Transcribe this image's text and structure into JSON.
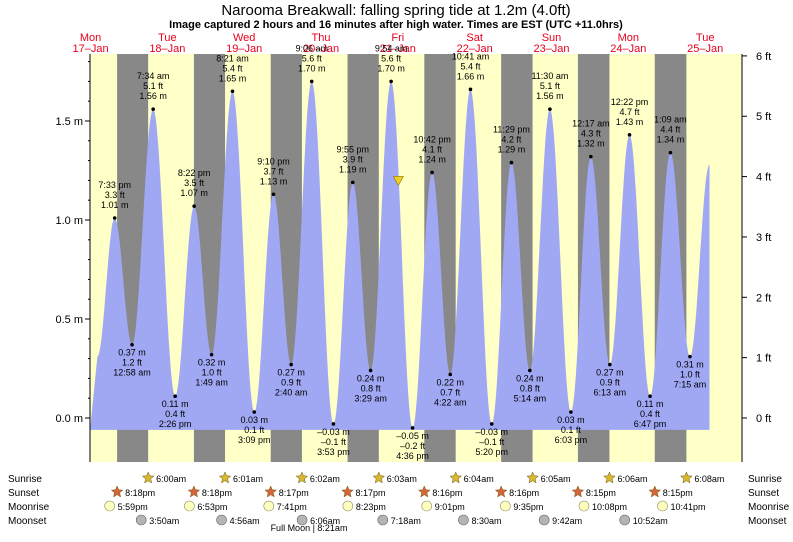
{
  "title": "Narooma Breakwall: falling  spring tide at 1.2m (4.0ft)",
  "subtitle": "Image captured 2 hours and 16 minutes after high water. Times are EST (UTC +11.0hrs)",
  "days": [
    {
      "dow": "Mon",
      "date": "17–Jan"
    },
    {
      "dow": "Tue",
      "date": "18–Jan"
    },
    {
      "dow": "Wed",
      "date": "19–Jan"
    },
    {
      "dow": "Thu",
      "date": "20–Jan"
    },
    {
      "dow": "Fri",
      "date": "21–Jan"
    },
    {
      "dow": "Sat",
      "date": "22–Jan"
    },
    {
      "dow": "Sun",
      "date": "23–Jan"
    },
    {
      "dow": "Mon",
      "date": "24–Jan"
    },
    {
      "dow": "Tue",
      "date": "25–Jan"
    }
  ],
  "colors": {
    "day": "#ffffc8",
    "night": "#888888",
    "water": "#a0a8f4",
    "day_label": "#e8001c",
    "sunrise_star": "#d8b830",
    "sunset_star": "#d8643a",
    "moonrise": "#ffffc0",
    "moonset": "#b4b4b4",
    "marker": "#f0d020"
  },
  "rows": {
    "sunrise": "Sunrise",
    "sunset": "Sunset",
    "moonrise": "Moonrise",
    "moonset": "Moonset"
  },
  "full_moon_note": "Full Moon | 8:21am",
  "chart_data": {
    "type": "area",
    "title": "Narooma Breakwall: falling  spring tide at 1.2m (4.0ft)",
    "ylabel_left": "m",
    "ylabel_right": "ft",
    "ylim_m": [
      -0.08,
      1.93
    ],
    "left_ticks": [
      "0.0 m",
      "0.5 m",
      "1.0 m",
      "1.5 m"
    ],
    "left_tick_values": [
      0,
      0.5,
      1.0,
      1.5
    ],
    "right_ticks": [
      "0 ft",
      "1 ft",
      "2 ft",
      "3 ft",
      "4 ft",
      "5 ft",
      "6 ft"
    ],
    "right_tick_values": [
      0,
      1,
      2,
      3,
      4,
      5,
      6
    ],
    "current": {
      "day": 4,
      "time": "12:10pm",
      "height_m": 1.2,
      "height_ft": 4.0
    },
    "tides": [
      {
        "day": 0,
        "time": "7:33 pm",
        "ft": "3.3 ft",
        "m": "1.01 m",
        "v": 1.01,
        "high": true
      },
      {
        "day": 1,
        "time": "12:58 am",
        "ft": "1.2 ft",
        "m": "0.37 m",
        "v": 0.37,
        "high": false
      },
      {
        "day": 1,
        "time": "7:34 am",
        "ft": "5.1 ft",
        "m": "1.56 m",
        "v": 1.56,
        "high": true
      },
      {
        "day": 1,
        "time": "2:26 pm",
        "ft": "0.4 ft",
        "m": "0.11 m",
        "v": 0.11,
        "high": false
      },
      {
        "day": 1,
        "time": "8:22 pm",
        "ft": "3.5 ft",
        "m": "1.07 m",
        "v": 1.07,
        "high": true
      },
      {
        "day": 2,
        "time": "1:49 am",
        "ft": "1.0 ft",
        "m": "0.32 m",
        "v": 0.32,
        "high": false
      },
      {
        "day": 2,
        "time": "8:21 am",
        "ft": "5.4 ft",
        "m": "1.65 m",
        "v": 1.65,
        "high": true
      },
      {
        "day": 2,
        "time": "3:09 pm",
        "ft": "0.1 ft",
        "m": "0.03 m",
        "v": 0.03,
        "high": false
      },
      {
        "day": 2,
        "time": "9:10 pm",
        "ft": "3.7 ft",
        "m": "1.13 m",
        "v": 1.13,
        "high": true
      },
      {
        "day": 3,
        "time": "2:40 am",
        "ft": "0.9 ft",
        "m": "0.27 m",
        "v": 0.27,
        "high": false
      },
      {
        "day": 3,
        "time": "9:06 am",
        "ft": "5.6 ft",
        "m": "1.70 m",
        "v": 1.7,
        "high": true
      },
      {
        "day": 3,
        "time": "3:53 pm",
        "ft": "–0.1 ft",
        "m": "–0.03 m",
        "v": -0.03,
        "high": false
      },
      {
        "day": 3,
        "time": "9:55 pm",
        "ft": "3.9 ft",
        "m": "1.19 m",
        "v": 1.19,
        "high": true
      },
      {
        "day": 4,
        "time": "3:29 am",
        "ft": "0.8 ft",
        "m": "0.24 m",
        "v": 0.24,
        "high": false
      },
      {
        "day": 4,
        "time": "9:54 am",
        "ft": "5.6 ft",
        "m": "1.70 m",
        "v": 1.7,
        "high": true
      },
      {
        "day": 4,
        "time": "4:36 pm",
        "ft": "–0.2 ft",
        "m": "–0.05 m",
        "v": -0.05,
        "high": false
      },
      {
        "day": 4,
        "time": "10:42 pm",
        "ft": "4.1 ft",
        "m": "1.24 m",
        "v": 1.24,
        "high": true
      },
      {
        "day": 5,
        "time": "4:22 am",
        "ft": "0.7 ft",
        "m": "0.22 m",
        "v": 0.22,
        "high": false
      },
      {
        "day": 5,
        "time": "10:41 am",
        "ft": "5.4 ft",
        "m": "1.66 m",
        "v": 1.66,
        "high": true
      },
      {
        "day": 5,
        "time": "5:20 pm",
        "ft": "–0.1 ft",
        "m": "–0.03 m",
        "v": -0.03,
        "high": false
      },
      {
        "day": 5,
        "time": "11:29 pm",
        "ft": "4.2 ft",
        "m": "1.29 m",
        "v": 1.29,
        "high": true
      },
      {
        "day": 6,
        "time": "5:14 am",
        "ft": "0.8 ft",
        "m": "0.24 m",
        "v": 0.24,
        "high": false
      },
      {
        "day": 6,
        "time": "11:30 am",
        "ft": "5.1 ft",
        "m": "1.56 m",
        "v": 1.56,
        "high": true
      },
      {
        "day": 6,
        "time": "6:03 pm",
        "ft": "0.1 ft",
        "m": "0.03 m",
        "v": 0.03,
        "high": false
      },
      {
        "day": 7,
        "time": "12:17 am",
        "ft": "4.3 ft",
        "m": "1.32 m",
        "v": 1.32,
        "high": true
      },
      {
        "day": 7,
        "time": "6:13 am",
        "ft": "0.9 ft",
        "m": "0.27 m",
        "v": 0.27,
        "high": false
      },
      {
        "day": 7,
        "time": "12:22 pm",
        "ft": "4.7 ft",
        "m": "1.43 m",
        "v": 1.43,
        "high": true
      },
      {
        "day": 7,
        "time": "6:47 pm",
        "ft": "0.4 ft",
        "m": "0.11 m",
        "v": 0.11,
        "high": false
      },
      {
        "day": 8,
        "time": "1:09 am",
        "ft": "4.4 ft",
        "m": "1.34 m",
        "v": 1.34,
        "high": true
      },
      {
        "day": 8,
        "time": "7:15 am",
        "ft": "1.0 ft",
        "m": "0.31 m",
        "v": 0.31,
        "high": false
      }
    ],
    "sunrise": [
      {
        "day": 1,
        "time": "6:00am"
      },
      {
        "day": 2,
        "time": "6:01am"
      },
      {
        "day": 3,
        "time": "6:02am"
      },
      {
        "day": 4,
        "time": "6:03am"
      },
      {
        "day": 5,
        "time": "6:04am"
      },
      {
        "day": 6,
        "time": "6:05am"
      },
      {
        "day": 7,
        "time": "6:06am"
      },
      {
        "day": 8,
        "time": "6:08am"
      }
    ],
    "sunset": [
      {
        "day": 0,
        "time": "8:18pm"
      },
      {
        "day": 1,
        "time": "8:18pm"
      },
      {
        "day": 2,
        "time": "8:17pm"
      },
      {
        "day": 3,
        "time": "8:17pm"
      },
      {
        "day": 4,
        "time": "8:16pm"
      },
      {
        "day": 5,
        "time": "8:16pm"
      },
      {
        "day": 6,
        "time": "8:15pm"
      },
      {
        "day": 7,
        "time": "8:15pm"
      }
    ],
    "moonrise": [
      {
        "day": 0,
        "time": "5:59pm"
      },
      {
        "day": 1,
        "time": "6:53pm"
      },
      {
        "day": 2,
        "time": "7:41pm"
      },
      {
        "day": 3,
        "time": "8:23pm"
      },
      {
        "day": 4,
        "time": "9:01pm"
      },
      {
        "day": 5,
        "time": "9:35pm"
      },
      {
        "day": 6,
        "time": "10:08pm"
      },
      {
        "day": 7,
        "time": "10:41pm"
      }
    ],
    "moonset": [
      {
        "day": 1,
        "time": "3:50am"
      },
      {
        "day": 2,
        "time": "4:56am"
      },
      {
        "day": 3,
        "time": "6:06am"
      },
      {
        "day": 4,
        "time": "7:18am"
      },
      {
        "day": 5,
        "time": "8:30am"
      },
      {
        "day": 6,
        "time": "9:42am"
      },
      {
        "day": 7,
        "time": "10:52am"
      }
    ]
  }
}
